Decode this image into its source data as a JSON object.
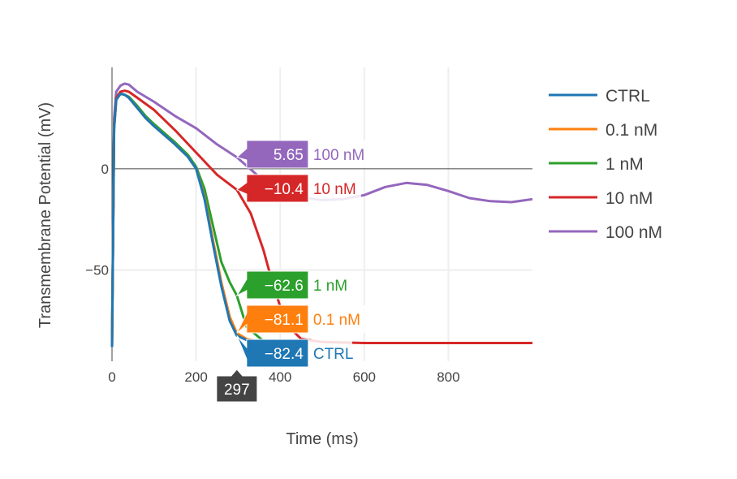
{
  "chart_data": {
    "type": "line",
    "xlabel": "Time (ms)",
    "ylabel": "Transmembrane Potential (mV)",
    "xlim": [
      0,
      1000
    ],
    "ylim": [
      -95,
      50
    ],
    "x_ticks": [
      0,
      200,
      400,
      600,
      800
    ],
    "y_ticks": [
      0,
      -50
    ],
    "grid": true,
    "zero_line": true,
    "legend_position": "right",
    "series": [
      {
        "name": "CTRL",
        "color": "#1f77b4",
        "x": [
          0,
          5,
          10,
          20,
          30,
          40,
          60,
          80,
          100,
          150,
          180,
          200,
          220,
          240,
          260,
          280,
          297,
          320,
          360,
          400
        ],
        "y": [
          -88,
          20,
          34,
          37,
          36.5,
          35,
          30,
          25,
          21,
          12,
          6,
          0,
          -15,
          -37,
          -58,
          -75,
          -82.4,
          -84.5,
          -85.5,
          -85.8
        ]
      },
      {
        "name": "0.1 nM",
        "color": "#ff7f0e",
        "x": [
          0,
          5,
          10,
          20,
          30,
          40,
          60,
          80,
          100,
          150,
          180,
          200,
          220,
          240,
          260,
          280,
          297,
          320,
          360,
          400
        ],
        "y": [
          -88,
          20,
          34,
          37,
          36.5,
          35,
          30,
          25,
          21,
          12,
          6,
          0,
          -14,
          -35,
          -56,
          -73,
          -81.1,
          -84,
          -85.5,
          -85.8
        ]
      },
      {
        "name": "1 nM",
        "color": "#2ca02c",
        "x": [
          0,
          5,
          10,
          20,
          30,
          40,
          60,
          80,
          100,
          150,
          180,
          200,
          220,
          240,
          260,
          280,
          297,
          320,
          360,
          400
        ],
        "y": [
          -88,
          20,
          34,
          37,
          36.5,
          35.5,
          31,
          26,
          22,
          13,
          7,
          1,
          -10,
          -28,
          -46,
          -56,
          -62.6,
          -78,
          -85,
          -85.8
        ]
      },
      {
        "name": "10 nM",
        "color": "#d62728",
        "x": [
          0,
          5,
          10,
          20,
          30,
          40,
          60,
          100,
          150,
          200,
          250,
          297,
          330,
          360,
          380,
          400,
          420,
          450,
          500,
          600,
          700,
          800,
          900,
          1000
        ],
        "y": [
          -88,
          22,
          35,
          38,
          38.5,
          38,
          35,
          29,
          19,
          8,
          -3,
          -10.4,
          -22,
          -40,
          -55,
          -68,
          -78,
          -84,
          -85.5,
          -86,
          -86,
          -86,
          -86,
          -86
        ]
      },
      {
        "name": "100 nM",
        "color": "#9467bd",
        "x": [
          0,
          5,
          10,
          20,
          30,
          40,
          60,
          100,
          150,
          200,
          250,
          297,
          350,
          400,
          450,
          500,
          550,
          600,
          650,
          700,
          750,
          800,
          850,
          900,
          950,
          1000
        ],
        "y": [
          -88,
          25,
          38,
          41,
          42,
          41.5,
          38,
          33,
          26,
          20,
          12,
          5.65,
          -4,
          -10,
          -14,
          -15.5,
          -15,
          -13,
          -9,
          -7,
          -8,
          -11,
          -14.5,
          -16,
          -16.5,
          -15
        ]
      }
    ],
    "hover": {
      "x_value": "297",
      "items": [
        {
          "series": "100 nM",
          "value_text": "5.65",
          "y": 5.65
        },
        {
          "series": "10 nM",
          "value_text": "−10.4",
          "y": -10.4
        },
        {
          "series": "1 nM",
          "value_text": "−62.6",
          "y": -62.6
        },
        {
          "series": "0.1 nM",
          "value_text": "−81.1",
          "y": -81.1
        },
        {
          "series": "CTRL",
          "value_text": "−82.4",
          "y": -82.4
        }
      ]
    }
  },
  "labels": {
    "x_ticks": [
      "0",
      "200",
      "400",
      "600",
      "800"
    ],
    "y_ticks": [
      "0",
      "−50"
    ]
  }
}
